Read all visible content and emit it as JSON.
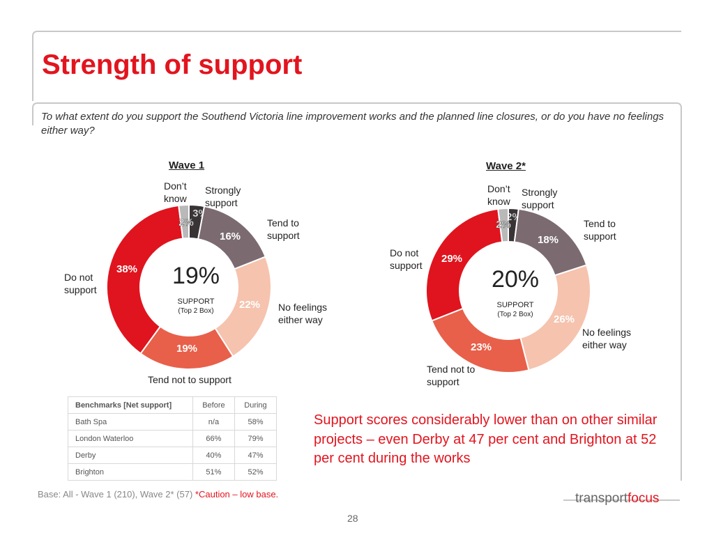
{
  "title": "Strength of support",
  "question": "To what extent do you support the Southend Victoria line improvement works and the planned line closures, or do you have no feelings either way?",
  "chart_data": [
    {
      "type": "pie",
      "title": "Wave 1",
      "categories": [
        "Strongly support",
        "Tend to support",
        "No feelings either way",
        "Tend not to support",
        "Do not support",
        "Don’t know"
      ],
      "values": [
        3,
        16,
        22,
        19,
        38,
        2
      ],
      "value_labels": [
        "3%",
        "16%",
        "22%",
        "19%",
        "38%",
        "2%"
      ],
      "colors": [
        "#3a3335",
        "#7b6b71",
        "#f6c3ae",
        "#e8604a",
        "#e0141e",
        "#b9b9b9"
      ],
      "center_value": "19%",
      "center_label": "SUPPORT",
      "center_sublabel": "(Top 2 Box)"
    },
    {
      "type": "pie",
      "title": "Wave 2*",
      "categories": [
        "Strongly support",
        "Tend to support",
        "No feelings either way",
        "Tend not to support",
        "Do not support",
        "Don’t know"
      ],
      "values": [
        2,
        18,
        26,
        23,
        29,
        2
      ],
      "value_labels": [
        "2%",
        "18%",
        "26%",
        "23%",
        "29%",
        "2%"
      ],
      "colors": [
        "#3a3335",
        "#7b6b71",
        "#f6c3ae",
        "#e8604a",
        "#e0141e",
        "#b9b9b9"
      ],
      "center_value": "20%",
      "center_label": "SUPPORT",
      "center_sublabel": "(Top 2 Box)"
    }
  ],
  "table": {
    "header": [
      "Benchmarks [Net support]",
      "Before",
      "During"
    ],
    "rows": [
      [
        "Bath Spa",
        "n/a",
        "58%"
      ],
      [
        "London Waterloo",
        "66%",
        "79%"
      ],
      [
        "Derby",
        "40%",
        "47%"
      ],
      [
        "Brighton",
        "51%",
        "52%"
      ]
    ]
  },
  "callout": "Support scores considerably lower than on other similar projects – even Derby at 47 per cent and Brighton at 52 per cent during the works",
  "base_note": "Base: All - Wave 1 (210), Wave 2* (57)",
  "caution": "*Caution – low base.",
  "logo": {
    "first": "transport",
    "second": "focus"
  },
  "page_number": 28
}
